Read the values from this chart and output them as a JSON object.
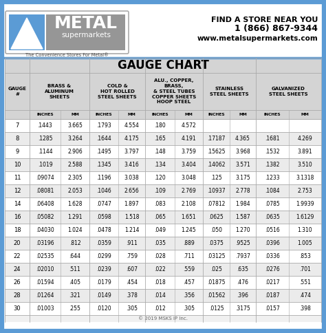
{
  "title": "GAUGE CHART",
  "rows": [
    [
      "7",
      ".1443",
      "3.665",
      ".1793",
      "4.554",
      ".180",
      "4.572",
      "",
      "",
      "",
      ""
    ],
    [
      "8",
      ".1285",
      "3.264",
      ".1644",
      "4.175",
      ".165",
      "4.191",
      ".17187",
      "4.365",
      ".1681",
      "4.269"
    ],
    [
      "9",
      ".1144",
      "2.906",
      ".1495",
      "3.797",
      ".148",
      "3.759",
      ".15625",
      "3.968",
      ".1532",
      "3.891"
    ],
    [
      "10",
      ".1019",
      "2.588",
      ".1345",
      "3.416",
      ".134",
      "3.404",
      ".14062",
      "3.571",
      ".1382",
      "3.510"
    ],
    [
      "11",
      ".09074",
      "2.305",
      ".1196",
      "3.038",
      ".120",
      "3.048",
      ".125",
      "3.175",
      ".1233",
      "3.1318"
    ],
    [
      "12",
      ".08081",
      "2.053",
      ".1046",
      "2.656",
      ".109",
      "2.769",
      ".10937",
      "2.778",
      ".1084",
      "2.753"
    ],
    [
      "14",
      ".06408",
      "1.628",
      ".0747",
      "1.897",
      ".083",
      "2.108",
      ".07812",
      "1.984",
      ".0785",
      "1.9939"
    ],
    [
      "16",
      ".05082",
      "1.291",
      ".0598",
      "1.518",
      ".065",
      "1.651",
      ".0625",
      "1.587",
      ".0635",
      "1.6129"
    ],
    [
      "18",
      ".04030",
      "1.024",
      ".0478",
      "1.214",
      ".049",
      "1.245",
      ".050",
      "1.270",
      ".0516",
      "1.310"
    ],
    [
      "20",
      ".03196",
      ".812",
      ".0359",
      ".911",
      ".035",
      ".889",
      ".0375",
      ".9525",
      ".0396",
      "1.005"
    ],
    [
      "22",
      ".02535",
      ".644",
      ".0299",
      ".759",
      ".028",
      ".711",
      ".03125",
      ".7937",
      ".0336",
      ".853"
    ],
    [
      "24",
      ".02010",
      ".511",
      ".0239",
      ".607",
      ".022",
      ".559",
      ".025",
      ".635",
      ".0276",
      ".701"
    ],
    [
      "26",
      ".01594",
      ".405",
      ".0179",
      ".454",
      ".018",
      ".457",
      ".01875",
      ".476",
      ".0217",
      ".551"
    ],
    [
      "28",
      ".01264",
      ".321",
      ".0149",
      ".378",
      ".014",
      ".356",
      ".01562",
      ".396",
      ".0187",
      ".474"
    ],
    [
      "30",
      ".01003",
      ".255",
      ".0120",
      ".305",
      ".012",
      ".305",
      ".0125",
      ".3175",
      ".0157",
      ".398"
    ]
  ],
  "copyright": "© 2019 MSKS IP Inc.",
  "tagline": "The Convenience Stores For Metal®",
  "border_color": "#5b9bd5",
  "header_bg": "#d4d4d4",
  "row_bg_even": "#ffffff",
  "row_bg_odd": "#ebebeb",
  "logo_bg": "#5b9bd5",
  "logo_gray": "#a0a0a0",
  "metal_text_bg": "#8c8c8c"
}
